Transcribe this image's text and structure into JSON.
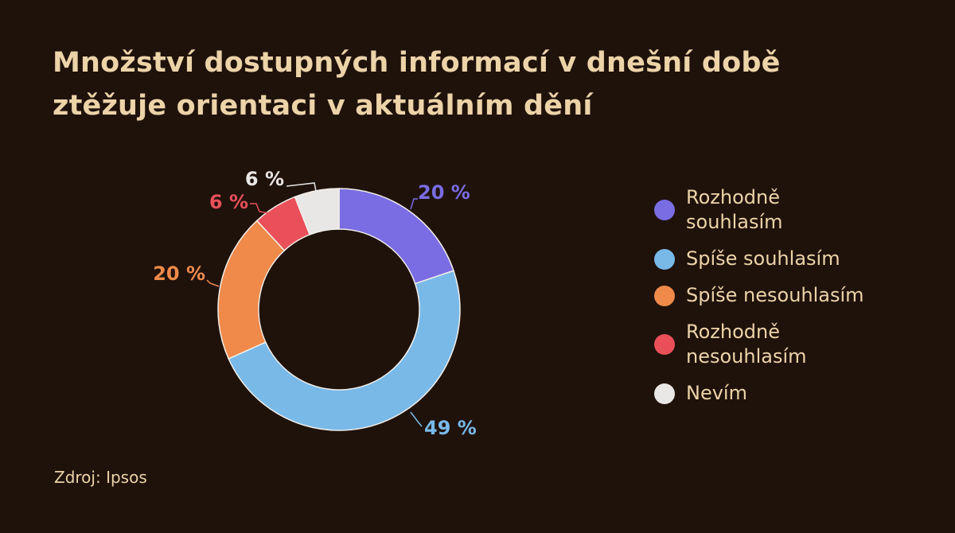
{
  "title": {
    "line1": "Množství dostupných informací v dnešní době",
    "line2": "ztěžuje orientaci v aktuálním dění"
  },
  "source": "Zdroj: Ipsos",
  "colors": {
    "background": "#1f120b",
    "text": "#ecd3a8",
    "ring_stroke": "#f2eee9"
  },
  "chart_data": {
    "type": "pie",
    "variant": "donut",
    "title": "Množství dostupných informací v dnešní době ztěžuje orientaci v aktuálním dění",
    "legend_position": "right",
    "categories": [
      "Rozhodně souhlasím",
      "Spíše souhlasím",
      "Spíše nesouhlasím",
      "Rozhodně nesouhlasím",
      "Nevím"
    ],
    "values": [
      20,
      49,
      20,
      6,
      6
    ],
    "labels": [
      "20 %",
      "49 %",
      "20 %",
      "6 %",
      "6 %"
    ],
    "colors": [
      "#7a6ce3",
      "#78b9e8",
      "#ef8a4a",
      "#e9505a",
      "#e9e7e6"
    ]
  }
}
